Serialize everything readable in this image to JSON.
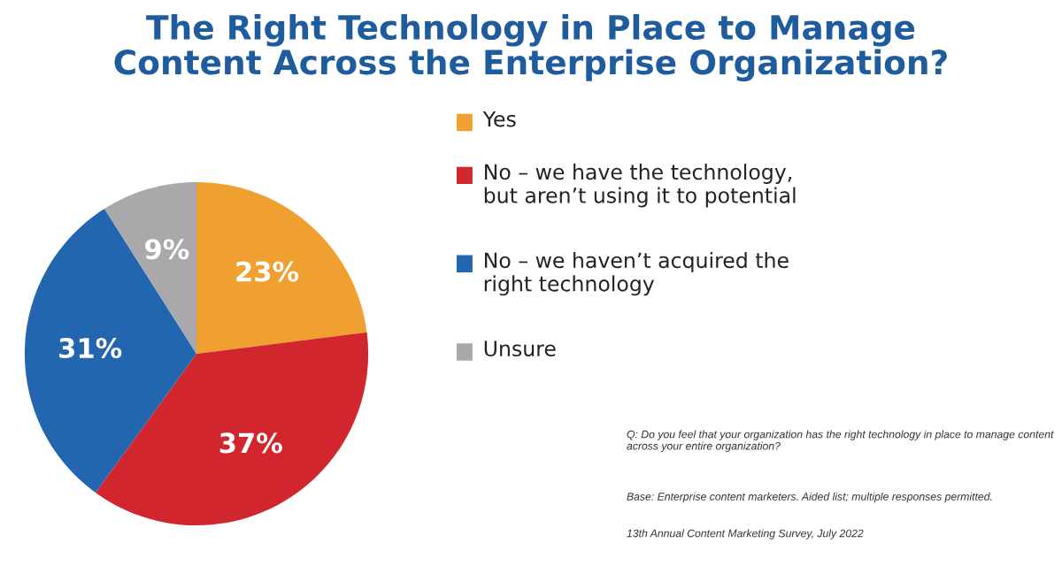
{
  "chart_data": {
    "type": "pie",
    "title": "The Right Technology in Place to Manage\nContent Across the Enterprise Organization?",
    "categories": [
      "Yes",
      "No – we have the technology,\nbut aren’t using it to potential",
      "No – we haven’t acquired the\nright technology",
      "Unsure"
    ],
    "values": [
      23,
      37,
      31,
      9
    ],
    "colors": [
      "#f0a030",
      "#d2262f",
      "#2366b0",
      "#a9a9ab"
    ],
    "value_labels": [
      "23%",
      "37%",
      "31%",
      "9%"
    ],
    "legend": "right",
    "annotations": [
      "Q: Do you feel that your organization has the right technology in place to manage content\nacross your entire organization?",
      "Base: Enterprise content marketers. Aided list; multiple responses permitted.",
      "13th Annual Content Marketing Survey, July 2022"
    ]
  }
}
